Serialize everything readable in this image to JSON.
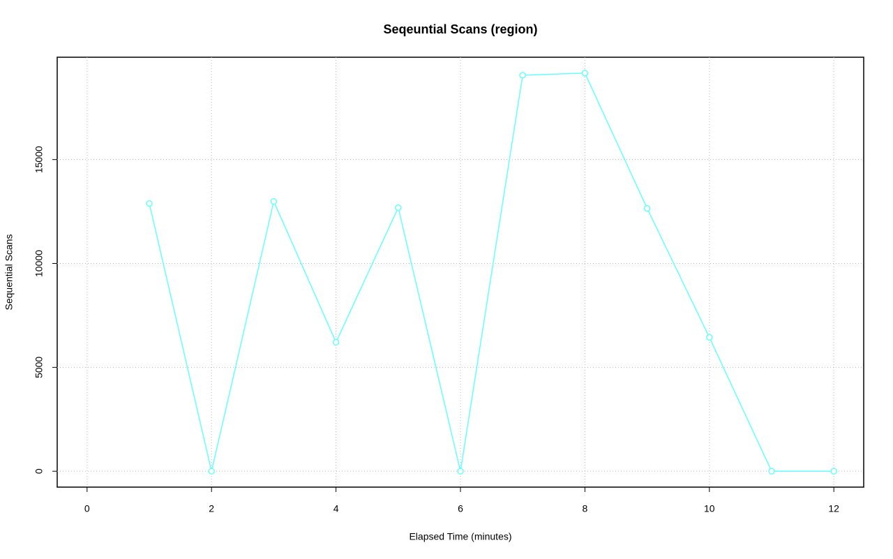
{
  "chart_data": {
    "type": "line",
    "title": "Seqeuntial Scans (region)",
    "x_label": "Elapsed Time (minutes)",
    "y_label": "Sequential Scans",
    "x": [
      1,
      2,
      3,
      4,
      5,
      6,
      7,
      8,
      9,
      10,
      11,
      12
    ],
    "series": [
      {
        "name": "Sequential Scans",
        "color": "#66ffff",
        "values": [
          12886,
          0,
          12987,
          6208,
          12685,
          0,
          19060,
          19161,
          12651,
          6443,
          0,
          0
        ]
      }
    ],
    "xlim": [
      -0.48,
      12.48
    ],
    "ylim": [
      -766,
      19927
    ],
    "xticks": [
      0,
      2,
      4,
      6,
      8,
      10,
      12
    ],
    "yticks": [
      0,
      5000,
      10000,
      15000
    ],
    "grid": true
  }
}
